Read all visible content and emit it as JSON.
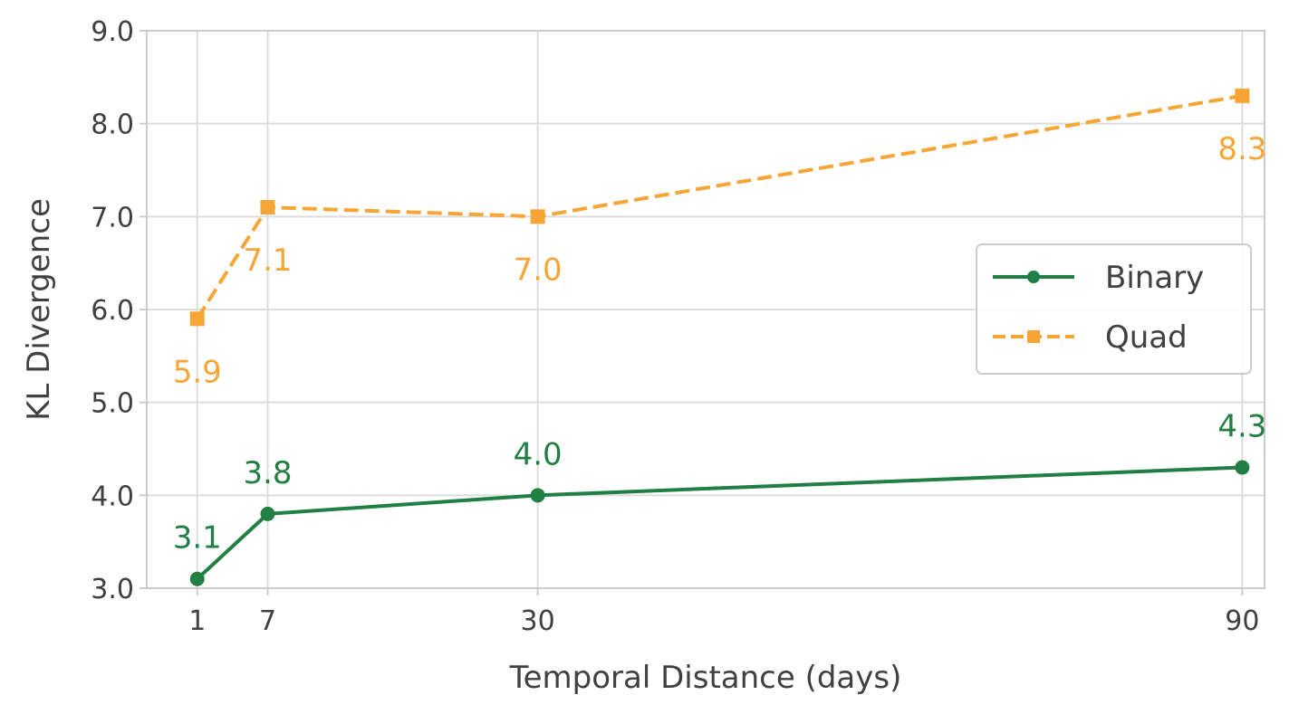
{
  "chart_data": {
    "type": "line",
    "title": "",
    "xlabel": "Temporal Distance (days)",
    "ylabel": "KL Divergence",
    "x": [
      1,
      7,
      30,
      90
    ],
    "x_tick_labels": [
      "1",
      "7",
      "30",
      "90"
    ],
    "xlim": [
      -3.3,
      91.9
    ],
    "ylim": [
      3.0,
      9.0
    ],
    "y_ticks": [
      3.0,
      4.0,
      5.0,
      6.0,
      7.0,
      8.0,
      9.0
    ],
    "y_tick_labels": [
      "3.0",
      "4.0",
      "5.0",
      "6.0",
      "7.0",
      "8.0",
      "9.0"
    ],
    "grid": true,
    "legend_position": "center-right",
    "series": [
      {
        "name": "Binary",
        "values": [
          3.1,
          3.8,
          4.0,
          4.3
        ],
        "labels": [
          "3.1",
          "3.8",
          "4.0",
          "4.3"
        ],
        "color": "#217f43",
        "marker": "circle",
        "line_style": "solid",
        "label_side": "above"
      },
      {
        "name": "Quad",
        "values": [
          5.9,
          7.1,
          7.0,
          8.3
        ],
        "labels": [
          "5.9",
          "7.1",
          "7.0",
          "8.3"
        ],
        "color": "#f7a535",
        "marker": "square",
        "line_style": "dashed",
        "label_side": "below"
      }
    ]
  }
}
